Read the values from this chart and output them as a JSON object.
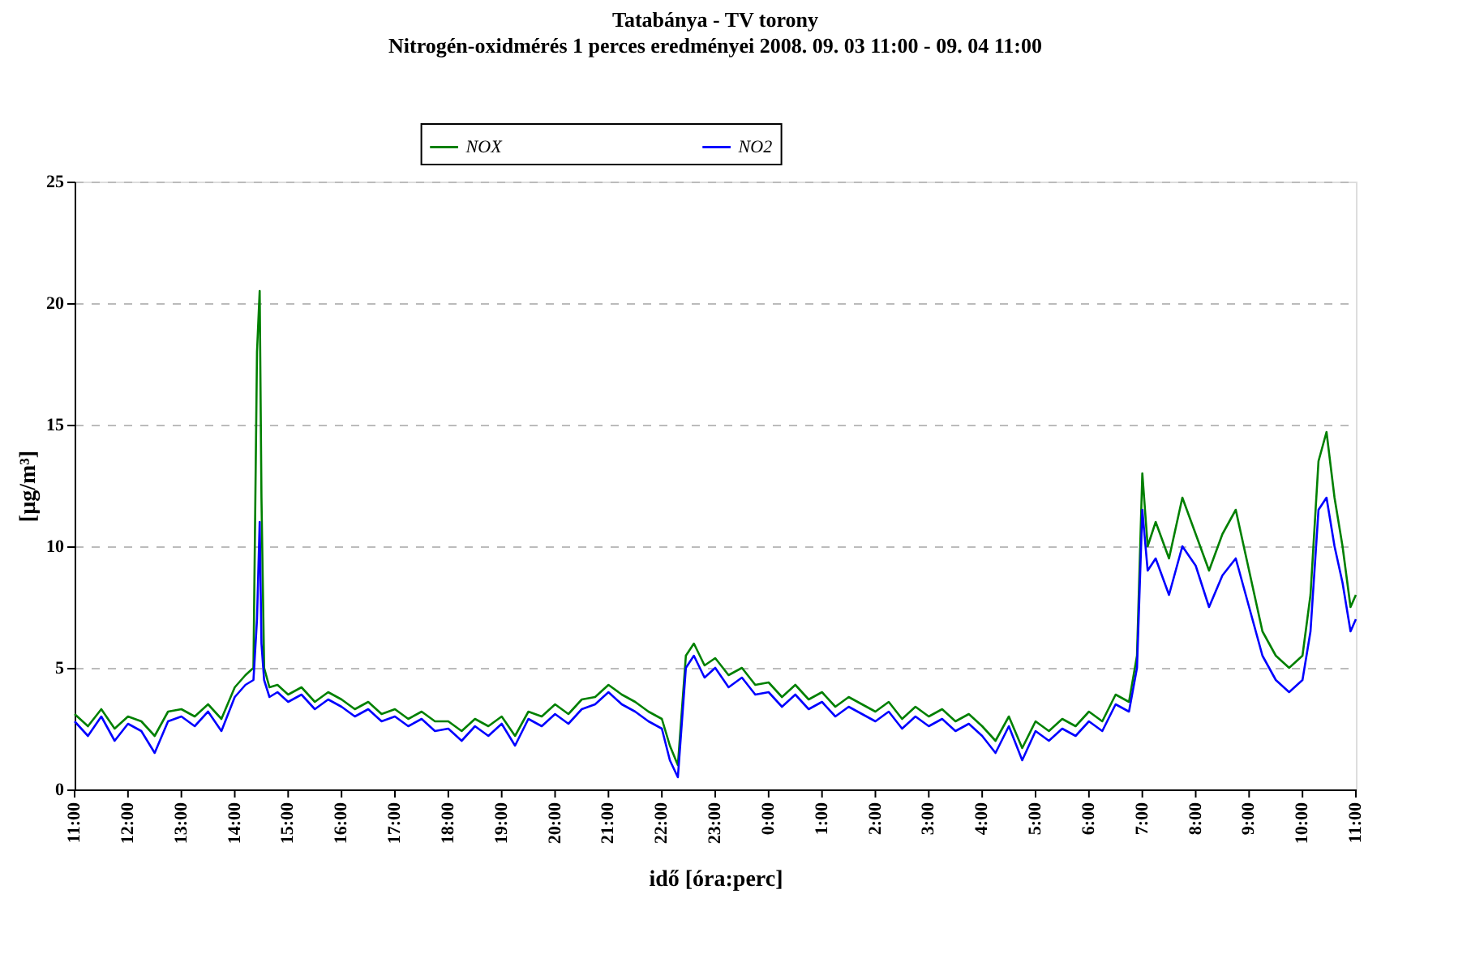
{
  "chart_data": {
    "type": "line",
    "title": "Tatabánya - TV torony",
    "subtitle": "Nitrogén-oxidmérés 1 perces eredményei 2008. 09. 03  11:00 - 09. 04  11:00",
    "xlabel": "idő [óra:perc]",
    "ylabel": "[µg/m³]",
    "x": [
      "2008-09-03T11:00",
      "2008-09-03T11:15",
      "2008-09-03T11:30",
      "2008-09-03T11:45",
      "2008-09-03T12:00",
      "2008-09-03T12:15",
      "2008-09-03T12:30",
      "2008-09-03T12:45",
      "2008-09-03T13:00",
      "2008-09-03T13:15",
      "2008-09-03T13:30",
      "2008-09-03T13:45",
      "2008-09-03T14:00",
      "2008-09-03T14:12",
      "2008-09-03T14:21",
      "2008-09-03T14:25",
      "2008-09-03T14:28",
      "2008-09-03T14:30",
      "2008-09-03T14:33",
      "2008-09-03T14:39",
      "2008-09-03T14:48",
      "2008-09-03T15:00",
      "2008-09-03T15:15",
      "2008-09-03T15:30",
      "2008-09-03T15:45",
      "2008-09-03T16:00",
      "2008-09-03T16:15",
      "2008-09-03T16:30",
      "2008-09-03T16:45",
      "2008-09-03T17:00",
      "2008-09-03T17:15",
      "2008-09-03T17:30",
      "2008-09-03T17:45",
      "2008-09-03T18:00",
      "2008-09-03T18:15",
      "2008-09-03T18:30",
      "2008-09-03T18:45",
      "2008-09-03T19:00",
      "2008-09-03T19:15",
      "2008-09-03T19:30",
      "2008-09-03T19:45",
      "2008-09-03T20:00",
      "2008-09-03T20:15",
      "2008-09-03T20:30",
      "2008-09-03T20:45",
      "2008-09-03T21:00",
      "2008-09-03T21:15",
      "2008-09-03T21:30",
      "2008-09-03T21:45",
      "2008-09-03T22:00",
      "2008-09-03T22:09",
      "2008-09-03T22:18",
      "2008-09-03T22:27",
      "2008-09-03T22:36",
      "2008-09-03T22:48",
      "2008-09-03T23:00",
      "2008-09-03T23:15",
      "2008-09-03T23:30",
      "2008-09-03T23:45",
      "2008-09-04T00:00",
      "2008-09-04T00:15",
      "2008-09-04T00:30",
      "2008-09-04T00:45",
      "2008-09-04T01:00",
      "2008-09-04T01:15",
      "2008-09-04T01:30",
      "2008-09-04T01:45",
      "2008-09-04T02:00",
      "2008-09-04T02:15",
      "2008-09-04T02:30",
      "2008-09-04T02:45",
      "2008-09-04T03:00",
      "2008-09-04T03:15",
      "2008-09-04T03:30",
      "2008-09-04T03:45",
      "2008-09-04T04:00",
      "2008-09-04T04:15",
      "2008-09-04T04:30",
      "2008-09-04T04:45",
      "2008-09-04T05:00",
      "2008-09-04T05:15",
      "2008-09-04T05:30",
      "2008-09-04T05:45",
      "2008-09-04T06:00",
      "2008-09-04T06:15",
      "2008-09-04T06:30",
      "2008-09-04T06:45",
      "2008-09-04T06:54",
      "2008-09-04T07:00",
      "2008-09-04T07:06",
      "2008-09-04T07:15",
      "2008-09-04T07:30",
      "2008-09-04T07:45",
      "2008-09-04T08:00",
      "2008-09-04T08:15",
      "2008-09-04T08:30",
      "2008-09-04T08:45",
      "2008-09-04T09:00",
      "2008-09-04T09:15",
      "2008-09-04T09:30",
      "2008-09-04T09:45",
      "2008-09-04T10:00",
      "2008-09-04T10:09",
      "2008-09-04T10:18",
      "2008-09-04T10:27",
      "2008-09-04T10:36",
      "2008-09-04T10:45",
      "2008-09-04T10:54",
      "2008-09-04T11:00"
    ],
    "series": [
      {
        "name": "NOX",
        "color": "#008000",
        "values": [
          3.1,
          2.6,
          3.3,
          2.5,
          3.0,
          2.8,
          2.2,
          3.2,
          3.3,
          3.0,
          3.5,
          2.9,
          4.2,
          4.7,
          5.0,
          18.0,
          20.5,
          12.0,
          5.0,
          4.2,
          4.3,
          3.9,
          4.2,
          3.6,
          4.0,
          3.7,
          3.3,
          3.6,
          3.1,
          3.3,
          2.9,
          3.2,
          2.8,
          2.8,
          2.4,
          2.9,
          2.6,
          3.0,
          2.2,
          3.2,
          3.0,
          3.5,
          3.1,
          3.7,
          3.8,
          4.3,
          3.9,
          3.6,
          3.2,
          2.9,
          1.8,
          1.0,
          5.5,
          6.0,
          5.1,
          5.4,
          4.7,
          5.0,
          4.3,
          4.4,
          3.8,
          4.3,
          3.7,
          4.0,
          3.4,
          3.8,
          3.5,
          3.2,
          3.6,
          2.9,
          3.4,
          3.0,
          3.3,
          2.8,
          3.1,
          2.6,
          2.0,
          3.0,
          1.7,
          2.8,
          2.4,
          2.9,
          2.6,
          3.2,
          2.8,
          3.9,
          3.6,
          5.5,
          13.0,
          10.0,
          11.0,
          9.5,
          12.0,
          10.5,
          9.0,
          10.5,
          11.5,
          9.0,
          6.5,
          5.5,
          5.0,
          5.5,
          8.0,
          13.5,
          14.7,
          12.0,
          10.0,
          7.5,
          8.0
        ]
      },
      {
        "name": "NO2",
        "color": "#0000ff",
        "values": [
          2.8,
          2.2,
          3.0,
          2.0,
          2.7,
          2.4,
          1.5,
          2.8,
          3.0,
          2.6,
          3.2,
          2.4,
          3.8,
          4.3,
          4.5,
          7.0,
          11.0,
          6.0,
          4.5,
          3.8,
          4.0,
          3.6,
          3.9,
          3.3,
          3.7,
          3.4,
          3.0,
          3.3,
          2.8,
          3.0,
          2.6,
          2.9,
          2.4,
          2.5,
          2.0,
          2.6,
          2.2,
          2.7,
          1.8,
          2.9,
          2.6,
          3.1,
          2.7,
          3.3,
          3.5,
          4.0,
          3.5,
          3.2,
          2.8,
          2.5,
          1.2,
          0.5,
          5.0,
          5.5,
          4.6,
          5.0,
          4.2,
          4.6,
          3.9,
          4.0,
          3.4,
          3.9,
          3.3,
          3.6,
          3.0,
          3.4,
          3.1,
          2.8,
          3.2,
          2.5,
          3.0,
          2.6,
          2.9,
          2.4,
          2.7,
          2.2,
          1.5,
          2.6,
          1.2,
          2.4,
          2.0,
          2.5,
          2.2,
          2.8,
          2.4,
          3.5,
          3.2,
          5.0,
          11.5,
          9.0,
          9.5,
          8.0,
          10.0,
          9.2,
          7.5,
          8.8,
          9.5,
          7.5,
          5.5,
          4.5,
          4.0,
          4.5,
          6.5,
          11.5,
          12.0,
          10.0,
          8.5,
          6.5,
          7.0
        ]
      }
    ],
    "xlim": [
      "2008-09-03T11:00",
      "2008-09-04T11:00"
    ],
    "xticks": [
      {
        "value": "2008-09-03T11:00",
        "label": "11:00"
      },
      {
        "value": "2008-09-03T12:00",
        "label": "12:00"
      },
      {
        "value": "2008-09-03T13:00",
        "label": "13:00"
      },
      {
        "value": "2008-09-03T14:00",
        "label": "14:00"
      },
      {
        "value": "2008-09-03T15:00",
        "label": "15:00"
      },
      {
        "value": "2008-09-03T16:00",
        "label": "16:00"
      },
      {
        "value": "2008-09-03T17:00",
        "label": "17:00"
      },
      {
        "value": "2008-09-03T18:00",
        "label": "18:00"
      },
      {
        "value": "2008-09-03T19:00",
        "label": "19:00"
      },
      {
        "value": "2008-09-03T20:00",
        "label": "20:00"
      },
      {
        "value": "2008-09-03T21:00",
        "label": "21:00"
      },
      {
        "value": "2008-09-03T22:00",
        "label": "22:00"
      },
      {
        "value": "2008-09-03T23:00",
        "label": "23:00"
      },
      {
        "value": "2008-09-04T00:00",
        "label": "0:00"
      },
      {
        "value": "2008-09-04T01:00",
        "label": "1:00"
      },
      {
        "value": "2008-09-04T02:00",
        "label": "2:00"
      },
      {
        "value": "2008-09-04T03:00",
        "label": "3:00"
      },
      {
        "value": "2008-09-04T04:00",
        "label": "4:00"
      },
      {
        "value": "2008-09-04T05:00",
        "label": "5:00"
      },
      {
        "value": "2008-09-04T06:00",
        "label": "6:00"
      },
      {
        "value": "2008-09-04T07:00",
        "label": "7:00"
      },
      {
        "value": "2008-09-04T08:00",
        "label": "8:00"
      },
      {
        "value": "2008-09-04T09:00",
        "label": "9:00"
      },
      {
        "value": "2008-09-04T10:00",
        "label": "10:00"
      },
      {
        "value": "2008-09-04T11:00",
        "label": "11:00"
      }
    ],
    "ylim": [
      0,
      25
    ],
    "yticks": [
      0,
      5,
      10,
      15,
      20,
      25
    ],
    "grid": "y",
    "legend": "top",
    "marker": "none",
    "line_style": "solid"
  }
}
